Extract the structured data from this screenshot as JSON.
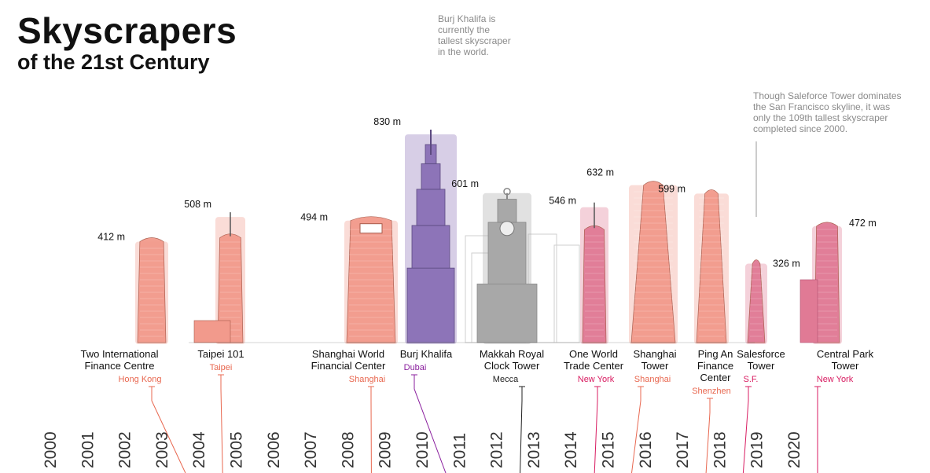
{
  "title": "Skyscrapers",
  "subtitle": "of the 21st Century",
  "annotations": {
    "burj": [
      "Burj Khalifa is",
      "currently the",
      "tallest skyscraper",
      "in the world."
    ],
    "salesforce": [
      "Though Saleforce Tower dominates",
      "the San Francisco skyline, it was",
      "only the 109th tallest skyscraper",
      "completed since 2000."
    ]
  },
  "colors": {
    "salmon": "#f29a8c",
    "salmon_text": "#e8674f",
    "purple": "#8d74b8",
    "purple_text": "#8a1f9e",
    "gray": "#a8a8a8",
    "pink": "#e07a95",
    "pink_text": "#d81b60",
    "dark_text": "#222222"
  },
  "chart_data": {
    "type": "bar",
    "xlabel": "",
    "ylabel": "",
    "years": [
      "2000",
      "2001",
      "2002",
      "2003",
      "2004",
      "2005",
      "2006",
      "2007",
      "2008",
      "2009",
      "2010",
      "2011",
      "2012",
      "2013",
      "2014",
      "2015",
      "2016",
      "2017",
      "2018",
      "2019",
      "2020"
    ],
    "units": "m",
    "buildings": [
      {
        "name_lines": [
          "Two International",
          "Finance Centre"
        ],
        "city": "Hong Kong",
        "height": 412,
        "height_label": "412 m",
        "year": 2003,
        "color_key": "salmon",
        "city_color_key": "salmon_text"
      },
      {
        "name_lines": [
          "Taipei 101"
        ],
        "city": "Taipei",
        "height": 508,
        "height_label": "508 m",
        "year": 2004,
        "color_key": "salmon",
        "city_color_key": "salmon_text"
      },
      {
        "name_lines": [
          "Shanghai World",
          "Financial Center"
        ],
        "city": "Shanghai",
        "height": 494,
        "height_label": "494 m",
        "year": 2008,
        "color_key": "salmon",
        "city_color_key": "salmon_text"
      },
      {
        "name_lines": [
          "Burj Khalifa"
        ],
        "city": "Dubai",
        "height": 830,
        "height_label": "830 m",
        "year": 2010,
        "color_key": "purple",
        "city_color_key": "purple_text"
      },
      {
        "name_lines": [
          "Makkah Royal",
          "Clock Tower"
        ],
        "city": "Mecca",
        "height": 601,
        "height_label": "601 m",
        "year": 2012,
        "color_key": "gray",
        "city_color_key": "dark_text"
      },
      {
        "name_lines": [
          "One World",
          "Trade Center"
        ],
        "city": "New York",
        "height": 546,
        "height_label": "546 m",
        "year": 2014,
        "color_key": "pink",
        "city_color_key": "pink_text"
      },
      {
        "name_lines": [
          "Shanghai",
          "Tower"
        ],
        "city": "Shanghai",
        "height": 632,
        "height_label": "632 m",
        "year": 2015,
        "color_key": "salmon",
        "city_color_key": "salmon_text"
      },
      {
        "name_lines": [
          "Ping An",
          "Finance",
          "Center"
        ],
        "city": "Shenzhen",
        "height": 599,
        "height_label": "599 m",
        "year": 2017,
        "color_key": "salmon",
        "city_color_key": "salmon_text"
      },
      {
        "name_lines": [
          "Salesforce",
          "Tower"
        ],
        "city": "S.F.",
        "height": 326,
        "height_label": "326 m",
        "year": 2018,
        "color_key": "pink",
        "city_color_key": "pink_text"
      },
      {
        "name_lines": [
          "Central Park",
          "Tower"
        ],
        "city": "New York",
        "height": 472,
        "height_label": "472 m",
        "year": 2020,
        "color_key": "pink",
        "city_color_key": "pink_text"
      }
    ]
  }
}
